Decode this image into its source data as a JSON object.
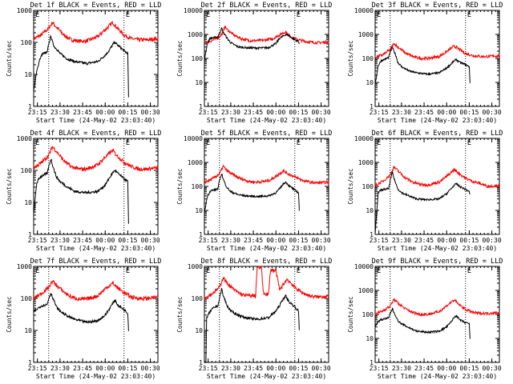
{
  "chart_data": [
    {
      "type": "line",
      "title": "Det 1f BLACK = Events, RED = LLD",
      "xlabel": "Start Time (24-May-02 23:03:40)",
      "ylabel": "Counts/sec",
      "yscale": "log",
      "ylim": [
        1,
        1000
      ],
      "yticks": [
        "1",
        "10",
        "100",
        "1000"
      ],
      "xticks": [
        "23:15",
        "23:30",
        "23:45",
        "00:00",
        "00:15",
        "00:30"
      ],
      "marker_left": "E",
      "marker_right": "E",
      "series": [
        {
          "name": "LLD",
          "color": "#ff0000",
          "x": [
            0,
            10,
            20,
            25,
            30,
            40,
            50,
            60,
            70,
            85,
            95,
            105,
            110,
            120,
            130,
            140,
            150,
            165
          ],
          "y": [
            130,
            170,
            280,
            420,
            300,
            170,
            120,
            110,
            110,
            150,
            250,
            420,
            300,
            170,
            130,
            120,
            120,
            130
          ]
        },
        {
          "name": "Events",
          "color": "#000000",
          "x": [
            0,
            4,
            8,
            12,
            18,
            20,
            23,
            25,
            28,
            30,
            35,
            45,
            55,
            70,
            85,
            95,
            100,
            105,
            108,
            112,
            120,
            125,
            126
          ],
          "y": [
            3,
            12,
            30,
            45,
            48,
            90,
            160,
            100,
            70,
            65,
            45,
            30,
            25,
            22,
            25,
            40,
            55,
            85,
            100,
            80,
            55,
            45,
            2
          ]
        }
      ]
    },
    {
      "type": "line",
      "title": "Det 2f BLACK = Events, RED = LLD",
      "xlabel": "Start Time (24-May-02 23:03:40)",
      "ylabel": "Counts/sec",
      "yscale": "log",
      "ylim": [
        1,
        10000
      ],
      "yticks": [
        "1",
        "10",
        "100",
        "1000",
        "10000"
      ],
      "xticks": [
        "23:15",
        "23:30",
        "23:45",
        "00:00",
        "00:15",
        "00:30"
      ],
      "marker_left": "E",
      "marker_right": "E",
      "series": [
        {
          "name": "LLD",
          "color": "#ff0000",
          "x": [
            0,
            10,
            20,
            25,
            27,
            30,
            40,
            50,
            60,
            75,
            90,
            100,
            108,
            112,
            120,
            135,
            150,
            165
          ],
          "y": [
            450,
            550,
            800,
            1200,
            2200,
            1600,
            900,
            650,
            550,
            550,
            650,
            950,
            1300,
            900,
            650,
            500,
            450,
            480
          ]
        },
        {
          "name": "Events",
          "color": "#000000",
          "x": [
            0,
            4,
            8,
            12,
            18,
            20,
            23,
            25,
            28,
            30,
            35,
            45,
            55,
            70,
            85,
            95,
            100,
            105,
            108,
            112,
            120,
            125,
            126
          ],
          "y": [
            80,
            450,
            700,
            720,
            800,
            1100,
            1800,
            1200,
            900,
            700,
            450,
            300,
            280,
            270,
            280,
            420,
            700,
            850,
            1000,
            900,
            600,
            500,
            400
          ]
        }
      ]
    },
    {
      "type": "line",
      "title": "Det 3f BLACK = Events, RED = LLD",
      "xlabel": "Start Time (24-May-02 23:03:40)",
      "ylabel": "Counts/sec",
      "yscale": "log",
      "ylim": [
        1,
        10000
      ],
      "yticks": [
        "1",
        "10",
        "100",
        "1000",
        "10000"
      ],
      "xticks": [
        "23:15",
        "23:30",
        "23:45",
        "00:00",
        "00:15",
        "00:30"
      ],
      "marker_left": "E",
      "marker_right": "E",
      "series": [
        {
          "name": "LLD",
          "color": "#ff0000",
          "x": [
            0,
            10,
            20,
            25,
            30,
            40,
            50,
            60,
            70,
            85,
            95,
            105,
            110,
            120,
            130,
            140,
            150,
            165
          ],
          "y": [
            110,
            140,
            230,
            420,
            300,
            170,
            120,
            100,
            100,
            120,
            190,
            330,
            260,
            160,
            130,
            120,
            120,
            130
          ]
        },
        {
          "name": "Events",
          "color": "#000000",
          "x": [
            0,
            4,
            8,
            12,
            18,
            20,
            23,
            25,
            28,
            30,
            35,
            45,
            55,
            70,
            85,
            95,
            100,
            105,
            108,
            112,
            120,
            125,
            126
          ],
          "y": [
            8,
            50,
            80,
            90,
            110,
            180,
            290,
            200,
            120,
            70,
            45,
            30,
            25,
            22,
            25,
            40,
            55,
            80,
            90,
            70,
            55,
            45,
            10
          ]
        }
      ]
    },
    {
      "type": "line",
      "title": "Det 4f BLACK = Events, RED = LLD",
      "xlabel": "Start Time (24-May-02 23:03:40)",
      "ylabel": "Counts/sec",
      "yscale": "log",
      "ylim": [
        1,
        1000
      ],
      "yticks": [
        "1",
        "10",
        "100",
        "1000"
      ],
      "xticks": [
        "23:15",
        "23:30",
        "23:45",
        "00:00",
        "00:15",
        "00:30"
      ],
      "marker_left": "E",
      "marker_right": "E",
      "series": [
        {
          "name": "LLD",
          "color": "#ff0000",
          "x": [
            0,
            10,
            20,
            25,
            30,
            40,
            50,
            60,
            70,
            85,
            95,
            105,
            110,
            120,
            130,
            140,
            150,
            165
          ],
          "y": [
            120,
            170,
            300,
            550,
            400,
            200,
            130,
            110,
            110,
            150,
            260,
            420,
            300,
            180,
            130,
            110,
            110,
            120
          ]
        },
        {
          "name": "Events",
          "color": "#000000",
          "x": [
            0,
            4,
            8,
            12,
            18,
            20,
            23,
            25,
            28,
            30,
            35,
            45,
            55,
            70,
            85,
            95,
            100,
            105,
            108,
            112,
            120,
            125,
            126
          ],
          "y": [
            4,
            40,
            60,
            70,
            80,
            130,
            230,
            150,
            90,
            65,
            45,
            30,
            22,
            20,
            22,
            35,
            55,
            85,
            100,
            80,
            55,
            45,
            2
          ]
        }
      ]
    },
    {
      "type": "line",
      "title": "Det 5f BLACK = Events, RED = LLD",
      "xlabel": "Start Time (24-May-02 23:03:40)",
      "ylabel": "Counts/sec",
      "yscale": "log",
      "ylim": [
        1,
        10000
      ],
      "yticks": [
        "1",
        "10",
        "100",
        "1000",
        "10000"
      ],
      "xticks": [
        "23:15",
        "23:30",
        "23:45",
        "00:00",
        "00:15",
        "00:30"
      ],
      "marker_left": "E",
      "marker_right": "E",
      "series": [
        {
          "name": "LLD",
          "color": "#ff0000",
          "x": [
            0,
            10,
            20,
            25,
            30,
            40,
            50,
            60,
            70,
            85,
            95,
            105,
            110,
            120,
            130,
            140,
            150,
            165
          ],
          "y": [
            150,
            200,
            330,
            700,
            450,
            280,
            200,
            160,
            150,
            170,
            260,
            450,
            350,
            250,
            180,
            150,
            140,
            150
          ]
        },
        {
          "name": "Events",
          "color": "#000000",
          "x": [
            0,
            4,
            8,
            12,
            18,
            20,
            23,
            25,
            28,
            30,
            35,
            45,
            55,
            70,
            85,
            95,
            100,
            105,
            108,
            112,
            120,
            125,
            126
          ],
          "y": [
            8,
            40,
            65,
            70,
            80,
            170,
            350,
            200,
            120,
            90,
            60,
            45,
            40,
            38,
            40,
            55,
            80,
            130,
            150,
            110,
            70,
            55,
            10
          ]
        }
      ]
    },
    {
      "type": "line",
      "title": "Det 6f BLACK = Events, RED = LLD",
      "xlabel": "Start Time (24-May-02 23:03:40)",
      "ylabel": "Counts/sec",
      "yscale": "log",
      "ylim": [
        1,
        10000
      ],
      "yticks": [
        "1",
        "10",
        "100",
        "1000",
        "10000"
      ],
      "xticks": [
        "23:15",
        "23:30",
        "23:45",
        "00:00",
        "00:15",
        "00:30"
      ],
      "marker_left": "E",
      "marker_right": "E",
      "series": [
        {
          "name": "LLD",
          "color": "#ff0000",
          "x": [
            0,
            10,
            20,
            25,
            30,
            40,
            50,
            60,
            70,
            85,
            95,
            105,
            110,
            120,
            130,
            140,
            150,
            165
          ],
          "y": [
            110,
            160,
            300,
            650,
            450,
            230,
            150,
            120,
            115,
            150,
            260,
            500,
            380,
            220,
            160,
            130,
            100,
            110
          ]
        },
        {
          "name": "Events",
          "color": "#000000",
          "x": [
            0,
            4,
            8,
            12,
            18,
            20,
            23,
            25,
            28,
            30,
            35,
            45,
            55,
            70,
            85,
            95,
            100,
            105,
            108,
            112,
            120,
            125,
            126
          ],
          "y": [
            1,
            55,
            70,
            75,
            80,
            180,
            380,
            220,
            120,
            80,
            55,
            40,
            30,
            28,
            30,
            50,
            75,
            110,
            130,
            100,
            75,
            60,
            45
          ]
        }
      ]
    },
    {
      "type": "line",
      "title": "Det 7f BLACK = Events, RED = LLD",
      "xlabel": "Start Time (24-May-02 23:03:40)",
      "ylabel": "Counts/sec",
      "yscale": "log",
      "ylim": [
        1,
        1000
      ],
      "yticks": [
        "1",
        "10",
        "100",
        "1000"
      ],
      "xticks": [
        "23:15",
        "23:30",
        "23:45",
        "00:00",
        "00:15",
        "00:30"
      ],
      "marker_left": "E",
      "marker_right": "E",
      "series": [
        {
          "name": "LLD",
          "color": "#ff0000",
          "x": [
            0,
            10,
            20,
            25,
            30,
            40,
            50,
            60,
            70,
            85,
            95,
            105,
            110,
            120,
            130,
            140,
            150,
            165
          ],
          "y": [
            100,
            140,
            220,
            350,
            260,
            160,
            110,
            95,
            95,
            120,
            200,
            300,
            230,
            150,
            110,
            100,
            100,
            110
          ]
        },
        {
          "name": "Events",
          "color": "#000000",
          "x": [
            0,
            4,
            8,
            12,
            18,
            20,
            23,
            25,
            28,
            30,
            35,
            45,
            55,
            70,
            85,
            95,
            100,
            105,
            108,
            112,
            120,
            125,
            126
          ],
          "y": [
            40,
            45,
            55,
            60,
            65,
            100,
            150,
            110,
            75,
            55,
            40,
            28,
            22,
            18,
            20,
            30,
            45,
            70,
            90,
            60,
            45,
            35,
            10
          ]
        }
      ]
    },
    {
      "type": "line",
      "title": "Det 8f BLACK = Events, RED = LLD",
      "xlabel": "Start Time (24-May-02 23:03:40)",
      "ylabel": "Counts/sec",
      "yscale": "log",
      "ylim": [
        1,
        1000
      ],
      "yticks": [
        "1",
        "10",
        "100",
        "1000"
      ],
      "xticks": [
        "23:15",
        "23:30",
        "23:45",
        "00:00",
        "00:15",
        "00:30"
      ],
      "marker_left": "E",
      "marker_right": "E",
      "series": [
        {
          "name": "LLD",
          "color": "#ff0000",
          "x": [
            0,
            10,
            20,
            25,
            30,
            40,
            50,
            60,
            68,
            70,
            76,
            78,
            85,
            88,
            95,
            100,
            105,
            110,
            120,
            130,
            140,
            150,
            165
          ],
          "y": [
            100,
            140,
            220,
            450,
            300,
            180,
            130,
            120,
            120,
            900,
            900,
            150,
            130,
            800,
            700,
            180,
            280,
            400,
            220,
            150,
            120,
            110,
            120
          ]
        },
        {
          "name": "Events",
          "color": "#000000",
          "x": [
            0,
            2,
            3,
            8,
            12,
            18,
            20,
            23,
            25,
            28,
            30,
            35,
            45,
            55,
            70,
            85,
            95,
            100,
            105,
            108,
            112,
            120,
            125,
            126
          ],
          "y": [
            1,
            1,
            25,
            40,
            50,
            60,
            100,
            200,
            120,
            80,
            60,
            40,
            30,
            25,
            22,
            25,
            40,
            60,
            100,
            120,
            80,
            55,
            40,
            10
          ]
        }
      ]
    },
    {
      "type": "line",
      "title": "Det 9f BLACK = Events, RED = LLD",
      "xlabel": "Start Time (24-May-02 23:03:40)",
      "ylabel": "Counts/sec",
      "yscale": "log",
      "ylim": [
        1,
        10000
      ],
      "yticks": [
        "1",
        "10",
        "100",
        "1000",
        "10000"
      ],
      "xticks": [
        "23:15",
        "23:30",
        "23:45",
        "00:00",
        "00:15",
        "00:30"
      ],
      "marker_left": "E",
      "marker_right": "E",
      "series": [
        {
          "name": "LLD",
          "color": "#ff0000",
          "x": [
            0,
            10,
            20,
            25,
            30,
            40,
            50,
            60,
            70,
            85,
            95,
            105,
            110,
            120,
            130,
            140,
            150,
            165
          ],
          "y": [
            100,
            140,
            220,
            420,
            300,
            170,
            120,
            100,
            100,
            130,
            230,
            400,
            280,
            160,
            120,
            110,
            110,
            120
          ]
        },
        {
          "name": "Events",
          "color": "#000000",
          "x": [
            0,
            4,
            8,
            12,
            18,
            20,
            23,
            25,
            28,
            30,
            35,
            45,
            55,
            70,
            85,
            95,
            100,
            105,
            108,
            112,
            120,
            125,
            126
          ],
          "y": [
            30,
            50,
            60,
            65,
            70,
            110,
            170,
            120,
            80,
            55,
            40,
            28,
            20,
            18,
            20,
            30,
            45,
            75,
            90,
            60,
            45,
            40,
            10
          ]
        }
      ]
    }
  ]
}
